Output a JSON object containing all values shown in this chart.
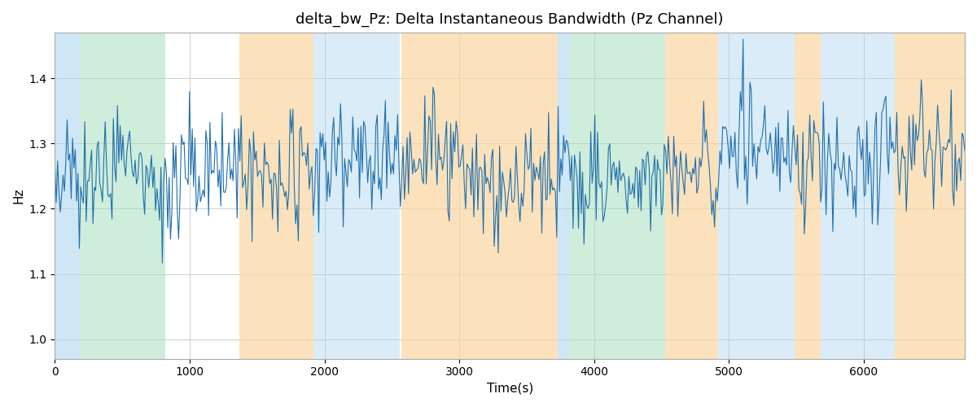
{
  "title": "delta_bw_Pz: Delta Instantaneous Bandwidth (Pz Channel)",
  "xlabel": "Time(s)",
  "ylabel": "Hz",
  "ylim": [
    0.97,
    1.47
  ],
  "xlim": [
    0,
    6750
  ],
  "yticks": [
    1.0,
    1.1,
    1.2,
    1.3,
    1.4
  ],
  "xticks": [
    0,
    1000,
    2000,
    3000,
    4000,
    5000,
    6000
  ],
  "line_color": "#1f6fad",
  "line_width": 0.8,
  "bg_bands": [
    {
      "xmin": 0,
      "xmax": 185,
      "color": "#AED6F1",
      "alpha": 0.6
    },
    {
      "xmin": 185,
      "xmax": 820,
      "color": "#A9DFBF",
      "alpha": 0.55
    },
    {
      "xmin": 820,
      "xmax": 1370,
      "color": "#FFFFFF",
      "alpha": 0.0
    },
    {
      "xmin": 1370,
      "xmax": 1920,
      "color": "#FAD7A0",
      "alpha": 0.7
    },
    {
      "xmin": 1920,
      "xmax": 2560,
      "color": "#AED6F1",
      "alpha": 0.45
    },
    {
      "xmin": 2560,
      "xmax": 2570,
      "color": "#FFFFFF",
      "alpha": 0.0
    },
    {
      "xmin": 2570,
      "xmax": 3730,
      "color": "#FAD7A0",
      "alpha": 0.7
    },
    {
      "xmin": 3730,
      "xmax": 3820,
      "color": "#AED6F1",
      "alpha": 0.6
    },
    {
      "xmin": 3820,
      "xmax": 3890,
      "color": "#A9DFBF",
      "alpha": 0.55
    },
    {
      "xmin": 3890,
      "xmax": 4530,
      "color": "#A9DFBF",
      "alpha": 0.55
    },
    {
      "xmin": 4530,
      "xmax": 4920,
      "color": "#FAD7A0",
      "alpha": 0.7
    },
    {
      "xmin": 4920,
      "xmax": 5490,
      "color": "#AED6F1",
      "alpha": 0.45
    },
    {
      "xmin": 5490,
      "xmax": 5680,
      "color": "#FAD7A0",
      "alpha": 0.7
    },
    {
      "xmin": 5680,
      "xmax": 6230,
      "color": "#AED6F1",
      "alpha": 0.45
    },
    {
      "xmin": 6230,
      "xmax": 6750,
      "color": "#FAD7A0",
      "alpha": 0.7
    }
  ],
  "n_points": 670,
  "signal_mean": 1.265,
  "signal_std": 0.045,
  "figsize": [
    12,
    5
  ],
  "dpi": 100,
  "grid_color": "#cccccc",
  "title_fontsize": 13
}
